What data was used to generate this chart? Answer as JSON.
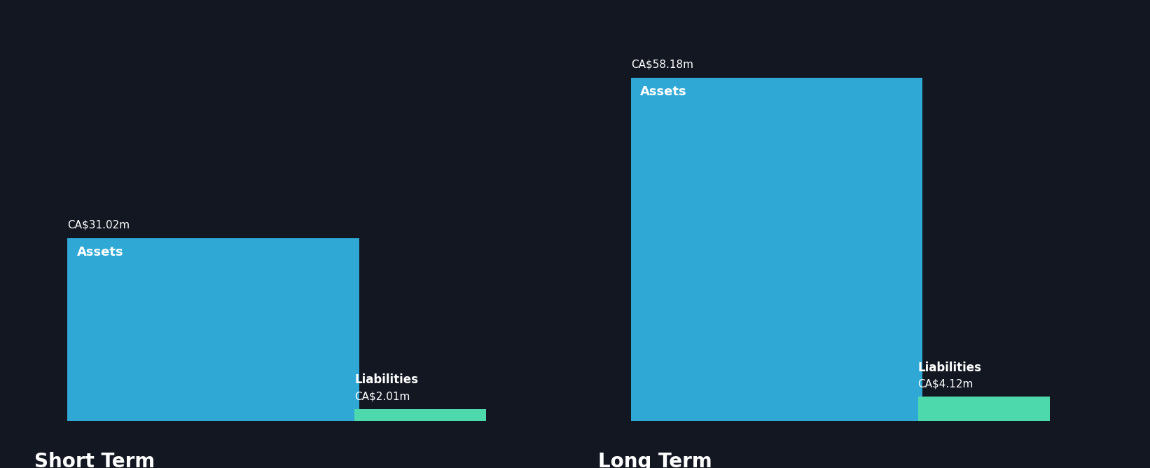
{
  "background_color": "#131722",
  "text_color": "#ffffff",
  "asset_color": "#2fa8d5",
  "liability_color": "#4dd9ac",
  "short_term": {
    "label": "Short Term",
    "assets_value": 31.02,
    "assets_label": "Assets",
    "assets_value_label": "CA$31.02m",
    "liabilities_value": 2.01,
    "liabilities_label": "Liabilities",
    "liabilities_value_label": "CA$2.01m"
  },
  "long_term": {
    "label": "Long Term",
    "assets_value": 58.18,
    "assets_label": "Assets",
    "assets_value_label": "CA$58.18m",
    "liabilities_value": 4.12,
    "liabilities_label": "Liabilities",
    "liabilities_value_label": "CA$4.12m"
  },
  "max_value": 65,
  "value_label_fontsize": 11,
  "inner_label_fontsize": 13,
  "liab_label_fontsize": 12,
  "liab_value_fontsize": 11,
  "section_label_fontsize": 20
}
